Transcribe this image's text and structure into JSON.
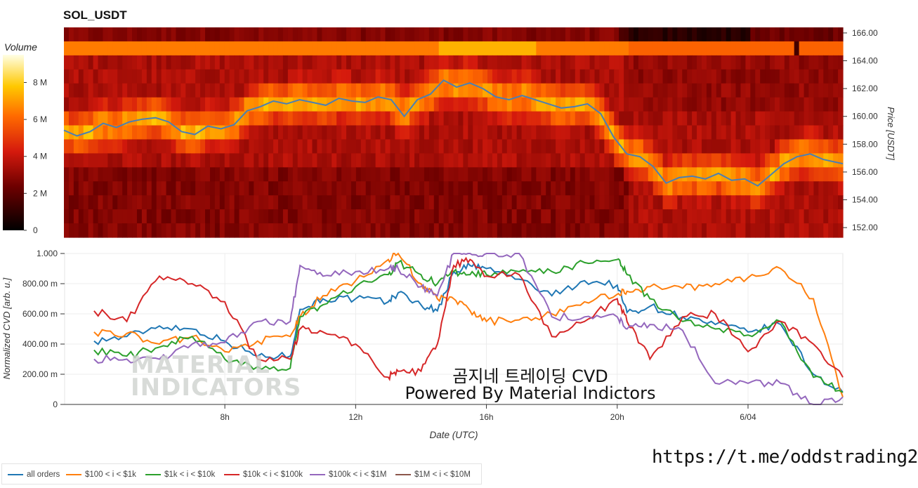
{
  "title": "SOL_USDT",
  "overlay": {
    "line1": "곰지네 트레이딩 CVD",
    "line2": "Powered By Material Indictors"
  },
  "link": "https://t.me/oddstrading2",
  "watermark": "MATERIAL INDICATORS",
  "colorbar": {
    "label": "Volume",
    "ticks": [
      "0",
      "2 M",
      "4 M",
      "6 M",
      "8 M"
    ],
    "range": [
      0,
      9.5
    ]
  },
  "colors": {
    "all_orders": "#1f77b4",
    "s100_1k": "#ff7f0e",
    "s1k_10k": "#2ca02c",
    "s10k_100k": "#d62728",
    "s100k_1m": "#9467bd",
    "s1m_10m": "#8c564b",
    "price_line": "#4a7fb5"
  },
  "heatmap": {
    "ylabel": "Price [USDT]",
    "y_ticks": [
      "152.00",
      "154.00",
      "156.00",
      "158.00",
      "160.00",
      "162.00",
      "164.00",
      "166.00"
    ],
    "y_range": [
      151.3,
      166.4
    ],
    "x_range_hours": [
      3.1,
      26.9
    ],
    "price_series": {
      "x": [
        3.1,
        3.5,
        3.9,
        4.3,
        4.7,
        5.1,
        5.5,
        5.9,
        6.3,
        6.7,
        7.1,
        7.5,
        7.9,
        8.3,
        8.7,
        9.1,
        9.5,
        9.9,
        10.3,
        10.7,
        11.1,
        11.5,
        11.9,
        12.3,
        12.7,
        13.1,
        13.5,
        13.9,
        14.3,
        14.7,
        15.1,
        15.5,
        15.9,
        16.3,
        16.7,
        17.1,
        17.5,
        17.9,
        18.3,
        18.7,
        19.1,
        19.5,
        19.9,
        20.3,
        20.7,
        21.1,
        21.5,
        21.9,
        22.3,
        22.7,
        23.1,
        23.5,
        23.9,
        24.3,
        24.7,
        25.1,
        25.5,
        25.9,
        26.3,
        26.7,
        26.9
      ],
      "y": [
        159.0,
        158.6,
        158.9,
        159.5,
        159.2,
        159.6,
        159.8,
        159.9,
        159.6,
        158.9,
        158.7,
        159.3,
        159.1,
        159.4,
        160.4,
        160.7,
        161.1,
        160.9,
        161.2,
        161.0,
        160.8,
        161.3,
        161.1,
        161.0,
        161.4,
        161.2,
        160.0,
        161.2,
        161.6,
        162.6,
        162.1,
        162.4,
        162.0,
        161.4,
        161.2,
        161.5,
        161.2,
        160.9,
        160.6,
        160.7,
        160.9,
        160.2,
        158.5,
        157.3,
        157.1,
        156.4,
        155.2,
        155.6,
        155.7,
        155.5,
        155.9,
        155.4,
        155.5,
        155.0,
        155.8,
        156.6,
        157.1,
        157.3,
        156.9,
        156.7,
        156.6
      ]
    }
  },
  "cvd": {
    "ylabel": "Normalized CVD [arb. u.]",
    "xlabel": "Date (UTC)",
    "y_ticks": [
      "0",
      "200.00 m",
      "400.00 m",
      "600.00 m",
      "800.00 m",
      "1.000"
    ],
    "x_ticks": [
      "8h",
      "12h",
      "16h",
      "20h",
      "6/04"
    ],
    "x_tick_hours": [
      8,
      12,
      16,
      20,
      24
    ],
    "legend": [
      "all orders",
      "$100 < i < $1k",
      "$1k < i < $10k",
      "$10k < i < $100k",
      "$100k < i < $1M",
      "$1M < i < $10M"
    ]
  },
  "chart_data": [
    {
      "type": "heatmap",
      "title": "SOL_USDT",
      "ylabel": "Price [USDT]",
      "colorbar_label": "Volume",
      "colorbar_ticks": [
        "0",
        "2 M",
        "4 M",
        "6 M",
        "8 M"
      ],
      "y_ticks": [
        "152.00",
        "154.00",
        "156.00",
        "158.00",
        "160.00",
        "162.00",
        "164.00",
        "166.00"
      ],
      "series": [
        {
          "name": "price",
          "x": [
            3.1,
            3.9,
            4.7,
            5.5,
            6.3,
            7.1,
            7.9,
            8.7,
            9.5,
            10.3,
            11.1,
            11.9,
            12.7,
            13.5,
            14.3,
            15.1,
            15.9,
            16.7,
            17.5,
            18.3,
            19.1,
            19.9,
            20.7,
            21.5,
            22.3,
            23.1,
            23.9,
            24.7,
            25.5,
            26.3,
            26.9
          ],
          "y": [
            159.0,
            158.9,
            159.2,
            159.8,
            159.6,
            158.7,
            159.1,
            160.4,
            161.1,
            161.2,
            160.8,
            161.1,
            161.4,
            160.0,
            161.6,
            162.1,
            162.0,
            161.2,
            161.2,
            160.6,
            160.9,
            158.5,
            157.1,
            155.2,
            155.7,
            155.9,
            155.5,
            155.8,
            157.1,
            156.9,
            156.6
          ]
        }
      ]
    },
    {
      "type": "line",
      "xlabel": "Date (UTC)",
      "ylabel": "Normalized CVD [arb. u.]",
      "ylim": [
        0,
        1
      ],
      "x_ticks": [
        "8h",
        "12h",
        "16h",
        "20h",
        "6/04"
      ],
      "x": [
        4.0,
        5.0,
        6.0,
        7.0,
        8.0,
        9.0,
        10.0,
        10.3,
        11.0,
        12.0,
        13.0,
        13.3,
        14.0,
        14.5,
        15.0,
        15.5,
        16.0,
        17.0,
        18.0,
        19.0,
        20.0,
        20.3,
        21.0,
        22.0,
        23.0,
        24.0,
        25.0,
        26.0,
        26.9
      ],
      "series": [
        {
          "name": "all orders",
          "values": [
            0.42,
            0.45,
            0.52,
            0.5,
            0.42,
            0.32,
            0.32,
            0.63,
            0.7,
            0.7,
            0.68,
            0.74,
            0.66,
            0.62,
            0.88,
            0.92,
            0.9,
            0.83,
            0.72,
            0.82,
            0.79,
            0.61,
            0.65,
            0.58,
            0.53,
            0.48,
            0.53,
            0.2,
            0.08
          ]
        },
        {
          "name": "$100 < i < $1k",
          "values": [
            0.48,
            0.47,
            0.4,
            0.45,
            0.35,
            0.42,
            0.45,
            0.58,
            0.72,
            0.82,
            0.96,
            1.0,
            0.8,
            0.7,
            0.7,
            0.62,
            0.55,
            0.56,
            0.6,
            0.68,
            0.73,
            0.75,
            0.78,
            0.77,
            0.8,
            0.84,
            0.9,
            0.7,
            0.05
          ]
        },
        {
          "name": "$1k < i < $10k",
          "values": [
            0.36,
            0.32,
            0.38,
            0.45,
            0.3,
            0.25,
            0.24,
            0.58,
            0.66,
            0.78,
            0.86,
            0.94,
            0.86,
            0.8,
            0.88,
            0.86,
            0.86,
            0.88,
            0.88,
            0.94,
            0.96,
            0.86,
            0.7,
            0.55,
            0.5,
            0.46,
            0.55,
            0.18,
            0.08
          ]
        },
        {
          "name": "$10k < i < $100k",
          "values": [
            0.62,
            0.55,
            0.85,
            0.8,
            0.68,
            0.3,
            0.3,
            0.5,
            0.48,
            0.4,
            0.18,
            0.22,
            0.22,
            0.4,
            0.92,
            0.96,
            0.85,
            0.86,
            0.45,
            0.55,
            0.7,
            0.55,
            0.3,
            0.58,
            0.6,
            0.35,
            0.55,
            0.4,
            0.18
          ]
        },
        {
          "name": "$100k < i < $1M",
          "values": [
            0.3,
            0.3,
            0.3,
            0.4,
            0.41,
            0.55,
            0.55,
            0.92,
            0.85,
            0.88,
            0.9,
            0.9,
            0.78,
            0.72,
            1.0,
            1.0,
            1.0,
            1.0,
            0.58,
            0.58,
            0.58,
            0.5,
            0.53,
            0.49,
            0.14,
            0.14,
            0.14,
            0.0,
            0.05
          ]
        },
        {
          "name": "$1M < i < $10M",
          "values": [
            null,
            null,
            null,
            null,
            null,
            null,
            null,
            null,
            null,
            null,
            null,
            null,
            null,
            null,
            null,
            null,
            null,
            null,
            null,
            null,
            null,
            null,
            null,
            null,
            null,
            null,
            null,
            null,
            null
          ]
        }
      ]
    }
  ]
}
